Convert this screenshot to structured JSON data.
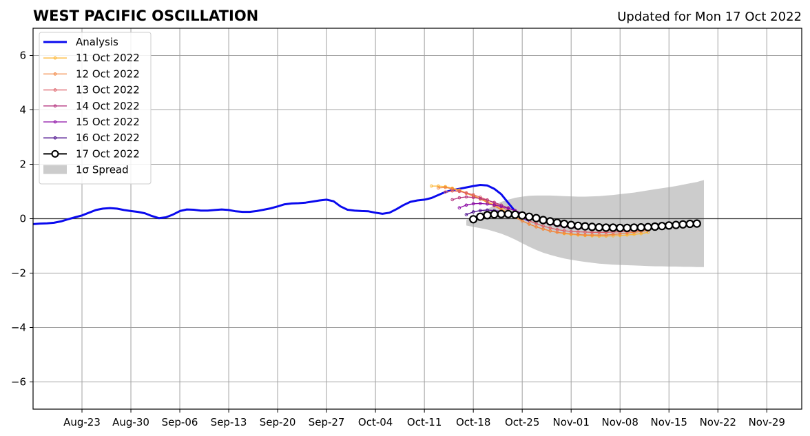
{
  "chart_data": {
    "type": "line",
    "title": "WEST PACIFIC OSCILLATION",
    "subtitle": "Updated for Mon 17 Oct 2022",
    "xlabel": "",
    "ylabel": "",
    "ylim": [
      -7,
      7
    ],
    "xlim": [
      "2022-08-16",
      "2022-12-04"
    ],
    "yticks": [
      -6,
      -4,
      -2,
      0,
      2,
      4,
      6
    ],
    "ytick_labels": [
      "−6",
      "−4",
      "−2",
      "0",
      "2",
      "4",
      "6"
    ],
    "xticks": [
      "2022-08-23",
      "2022-08-30",
      "2022-09-06",
      "2022-09-13",
      "2022-09-20",
      "2022-09-27",
      "2022-10-04",
      "2022-10-11",
      "2022-10-18",
      "2022-10-25",
      "2022-11-01",
      "2022-11-08",
      "2022-11-15",
      "2022-11-22",
      "2022-11-29"
    ],
    "xtick_labels": [
      "Aug-23",
      "Aug-30",
      "Sep-06",
      "Sep-13",
      "Sep-20",
      "Sep-27",
      "Oct-04",
      "Oct-11",
      "Oct-18",
      "Oct-25",
      "Nov-01",
      "Nov-08",
      "Nov-15",
      "Nov-22",
      "Nov-29"
    ],
    "grid": true,
    "legend_position": "top-left",
    "zero_line": 0,
    "analysis": {
      "name": "Analysis",
      "color": "#0a0aee",
      "start": "2022-08-16",
      "values": [
        -0.2,
        -0.18,
        -0.17,
        -0.15,
        -0.1,
        -0.02,
        0.05,
        0.12,
        0.22,
        0.32,
        0.37,
        0.39,
        0.37,
        0.32,
        0.28,
        0.25,
        0.2,
        0.1,
        0.02,
        0.05,
        0.15,
        0.28,
        0.34,
        0.33,
        0.3,
        0.3,
        0.32,
        0.34,
        0.32,
        0.27,
        0.25,
        0.25,
        0.28,
        0.33,
        0.38,
        0.45,
        0.53,
        0.56,
        0.57,
        0.59,
        0.63,
        0.67,
        0.7,
        0.64,
        0.45,
        0.33,
        0.3,
        0.28,
        0.27,
        0.22,
        0.18,
        0.22,
        0.35,
        0.5,
        0.62,
        0.67,
        0.7,
        0.76,
        0.87,
        0.98,
        1.05,
        1.1,
        1.15,
        1.2,
        1.24,
        1.22,
        1.1,
        0.9,
        0.58,
        0.27,
        0.05,
        -0.08
      ]
    },
    "series": [
      {
        "name": "11 Oct 2022",
        "color": "#fdb632",
        "start": "2022-10-12",
        "values": [
          1.2,
          1.2,
          1.18,
          1.12,
          1.05,
          0.95,
          0.85,
          0.74,
          0.63,
          0.5,
          0.36,
          0.2,
          0.05,
          -0.08,
          -0.2,
          -0.3,
          -0.38,
          -0.45,
          -0.5,
          -0.55,
          -0.58,
          -0.6,
          -0.62,
          -0.63,
          -0.64,
          -0.64,
          -0.63,
          -0.62,
          -0.6,
          -0.58,
          -0.55,
          -0.5
        ]
      },
      {
        "name": "12 Oct 2022",
        "color": "#f1843f",
        "start": "2022-10-13",
        "values": [
          1.13,
          1.15,
          1.1,
          1.02,
          0.93,
          0.83,
          0.72,
          0.6,
          0.47,
          0.33,
          0.19,
          0.05,
          -0.08,
          -0.2,
          -0.3,
          -0.38,
          -0.45,
          -0.5,
          -0.53,
          -0.56,
          -0.58,
          -0.6,
          -0.6,
          -0.6,
          -0.6,
          -0.58,
          -0.56,
          -0.53,
          -0.5,
          -0.47,
          -0.43
        ]
      },
      {
        "name": "13 Oct 2022",
        "color": "#dd5e66",
        "start": "2022-10-14",
        "values": [
          0.98,
          1.02,
          1.0,
          0.95,
          0.88,
          0.79,
          0.69,
          0.57,
          0.44,
          0.3,
          0.17,
          0.04,
          -0.08,
          -0.18,
          -0.27,
          -0.34,
          -0.4,
          -0.44,
          -0.47,
          -0.48,
          -0.49,
          -0.5,
          -0.5,
          -0.5,
          -0.49,
          -0.48,
          -0.47,
          -0.45,
          -0.42,
          -0.4
        ]
      },
      {
        "name": "14 Oct 2022",
        "color": "#b6357f",
        "start": "2022-10-15",
        "values": [
          0.7,
          0.77,
          0.8,
          0.78,
          0.74,
          0.68,
          0.6,
          0.5,
          0.4,
          0.28,
          0.16,
          0.05,
          -0.05,
          -0.13,
          -0.2,
          -0.26,
          -0.3,
          -0.33,
          -0.35,
          -0.36,
          -0.37,
          -0.38,
          -0.38,
          -0.38,
          -0.37,
          -0.36,
          -0.35,
          -0.33,
          -0.3
        ]
      },
      {
        "name": "15 Oct 2022",
        "color": "#8b0aa5",
        "start": "2022-10-16",
        "values": [
          0.4,
          0.5,
          0.55,
          0.56,
          0.54,
          0.5,
          0.45,
          0.38,
          0.3,
          0.2,
          0.1,
          0.01,
          -0.07,
          -0.14,
          -0.2,
          -0.25,
          -0.28,
          -0.3,
          -0.31,
          -0.32,
          -0.32,
          -0.32,
          -0.32,
          -0.31,
          -0.3,
          -0.29,
          -0.27,
          -0.25
        ]
      },
      {
        "name": "16 Oct 2022",
        "color": "#4a0c8c",
        "start": "2022-10-17",
        "values": [
          0.15,
          0.25,
          0.3,
          0.32,
          0.3,
          0.27,
          0.22,
          0.16,
          0.09,
          0.02,
          -0.05,
          -0.12,
          -0.18,
          -0.23,
          -0.27,
          -0.3,
          -0.32,
          -0.33,
          -0.34,
          -0.34,
          -0.34,
          -0.33,
          -0.32,
          -0.3,
          -0.28,
          -0.25,
          -0.22
        ]
      },
      {
        "name": "17 Oct 2022",
        "color": "#000000",
        "start": "2022-10-18",
        "values": [
          -0.02,
          0.07,
          0.13,
          0.16,
          0.17,
          0.17,
          0.15,
          0.12,
          0.07,
          0.02,
          -0.05,
          -0.1,
          -0.15,
          -0.19,
          -0.23,
          -0.26,
          -0.28,
          -0.3,
          -0.32,
          -0.33,
          -0.33,
          -0.34,
          -0.34,
          -0.33,
          -0.32,
          -0.31,
          -0.29,
          -0.27,
          -0.25,
          -0.23,
          -0.21,
          -0.19,
          -0.18
        ]
      }
    ],
    "spread": {
      "name": "1σ Spread",
      "color": "#cccccc",
      "start": "2022-10-17",
      "upper": [
        -0.05,
        0.08,
        0.2,
        0.35,
        0.5,
        0.62,
        0.7,
        0.77,
        0.81,
        0.84,
        0.85,
        0.85,
        0.85,
        0.84,
        0.83,
        0.82,
        0.81,
        0.81,
        0.82,
        0.83,
        0.85,
        0.87,
        0.9,
        0.93,
        0.96,
        1.0,
        1.04,
        1.08,
        1.12,
        1.16,
        1.2,
        1.25,
        1.3,
        1.35,
        1.42
      ],
      "lower": [
        -0.25,
        -0.3,
        -0.35,
        -0.4,
        -0.47,
        -0.55,
        -0.65,
        -0.77,
        -0.9,
        -1.03,
        -1.15,
        -1.25,
        -1.33,
        -1.4,
        -1.46,
        -1.51,
        -1.55,
        -1.59,
        -1.62,
        -1.65,
        -1.67,
        -1.69,
        -1.7,
        -1.71,
        -1.72,
        -1.73,
        -1.74,
        -1.75,
        -1.75,
        -1.76,
        -1.76,
        -1.77,
        -1.77,
        -1.78,
        -1.78
      ]
    }
  }
}
